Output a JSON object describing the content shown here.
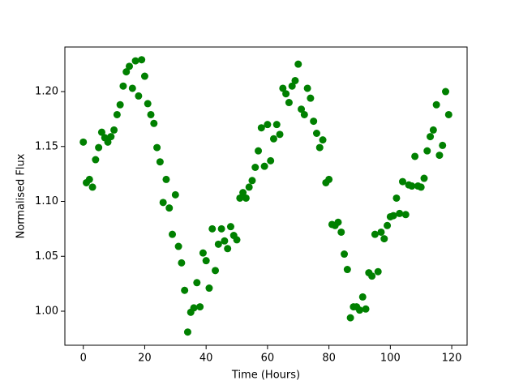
{
  "chart_data": {
    "type": "scatter",
    "xlabel": "Time (Hours)",
    "ylabel": "Normalised Flux",
    "x": [
      0,
      1,
      2,
      3,
      4,
      5,
      6,
      7,
      8,
      9,
      10,
      11,
      12,
      13,
      14,
      15,
      16,
      17,
      18,
      19,
      20,
      21,
      22,
      23,
      24,
      25,
      26,
      27,
      28,
      29,
      30,
      31,
      32,
      33,
      34,
      35,
      36,
      37,
      38,
      39,
      40,
      41,
      42,
      43,
      44,
      45,
      46,
      47,
      48,
      49,
      50,
      51,
      52,
      53,
      54,
      55,
      56,
      57,
      58,
      59,
      60,
      61,
      62,
      63,
      64,
      65,
      66,
      67,
      68,
      69,
      70,
      71,
      72,
      73,
      74,
      75,
      76,
      77,
      78,
      79,
      80,
      81,
      82,
      83,
      84,
      85,
      86,
      87,
      88,
      89,
      90,
      91,
      92,
      93,
      94,
      95,
      96,
      97,
      98,
      99,
      100,
      101,
      102,
      103,
      104,
      105,
      106,
      107,
      108,
      109,
      110,
      111,
      112,
      113,
      114,
      115,
      116,
      117,
      118,
      119
    ],
    "values": [
      1.154,
      1.117,
      1.12,
      1.113,
      1.138,
      1.149,
      1.163,
      1.158,
      1.154,
      1.159,
      1.165,
      1.179,
      1.188,
      1.205,
      1.218,
      1.223,
      1.203,
      1.228,
      1.196,
      1.229,
      1.214,
      1.189,
      1.179,
      1.171,
      1.149,
      1.136,
      1.099,
      1.12,
      1.094,
      1.07,
      1.106,
      1.059,
      1.044,
      1.019,
      0.981,
      0.999,
      1.003,
      1.026,
      1.004,
      1.053,
      1.046,
      1.021,
      1.075,
      1.037,
      1.061,
      1.075,
      1.064,
      1.057,
      1.077,
      1.069,
      1.065,
      1.103,
      1.108,
      1.103,
      1.113,
      1.119,
      1.131,
      1.146,
      1.167,
      1.132,
      1.17,
      1.137,
      1.157,
      1.17,
      1.161,
      1.203,
      1.198,
      1.19,
      1.205,
      1.21,
      1.225,
      1.184,
      1.179,
      1.203,
      1.194,
      1.173,
      1.162,
      1.149,
      1.156,
      1.117,
      1.12,
      1.079,
      1.078,
      1.081,
      1.072,
      1.052,
      1.038,
      0.994,
      1.004,
      1.004,
      1.001,
      1.013,
      1.002,
      1.035,
      1.032,
      1.07,
      1.036,
      1.072,
      1.066,
      1.078,
      1.086,
      1.087,
      1.103,
      1.089,
      1.118,
      1.088,
      1.115,
      1.114,
      1.141,
      1.114,
      1.113,
      1.121,
      1.146,
      1.159,
      1.165,
      1.188,
      1.142,
      1.151,
      1.2,
      1.179
    ],
    "color": "#008000",
    "xlim": [
      -6,
      125
    ],
    "xticks": [
      0,
      20,
      40,
      60,
      80,
      100,
      120
    ],
    "ylim": [
      0.969,
      1.2406
    ],
    "yticks": [
      {
        "value": 1.0,
        "label": "1.00"
      },
      {
        "value": 1.05,
        "label": "1.05"
      },
      {
        "value": 1.1,
        "label": "1.10"
      },
      {
        "value": 1.15,
        "label": "1.15"
      },
      {
        "value": 1.2,
        "label": "1.20"
      }
    ],
    "grid": false
  }
}
